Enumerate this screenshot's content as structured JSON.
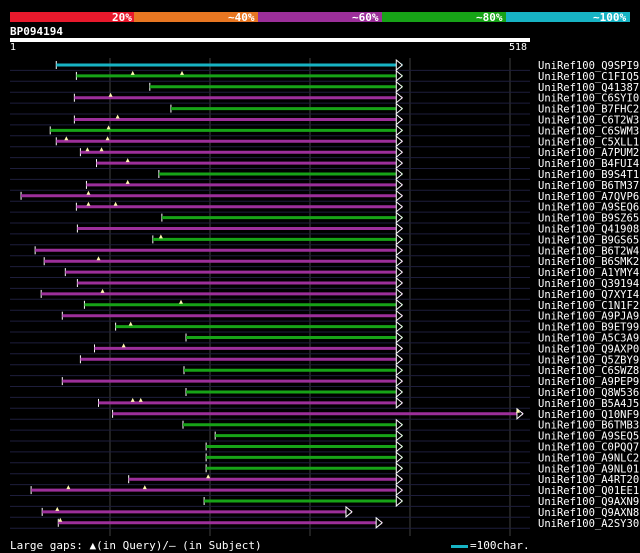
{
  "identity_legend": {
    "colors": [
      "#e8192c",
      "#e87722",
      "#9c2f9a",
      "#17a317",
      "#17b3c4"
    ],
    "labels": [
      "20%",
      "~40%",
      "~60%",
      "~80%",
      "~100%"
    ]
  },
  "query": {
    "id": "BP094194",
    "length_start": "1",
    "length_end": "518"
  },
  "chart_data": {
    "type": "alignment",
    "query_range": [
      1,
      518
    ],
    "hits": [
      {
        "name": "UniRef100_Q9SPI9",
        "color": "teal",
        "start": 47,
        "end": 391,
        "query_gaps": [],
        "subject_gaps": []
      },
      {
        "name": "UniRef100_C1FIQ5",
        "color": "green",
        "start": 67,
        "end": 391,
        "query_gaps": [
          123,
          172
        ],
        "subject_gaps": []
      },
      {
        "name": "UniRef100_Q41387",
        "color": "green",
        "start": 140,
        "end": 391,
        "query_gaps": [],
        "subject_gaps": []
      },
      {
        "name": "UniRef100_C6SYI0",
        "color": "purple",
        "start": 65,
        "end": 391,
        "query_gaps": [
          101
        ],
        "subject_gaps": []
      },
      {
        "name": "UniRef100_B7FHC2",
        "color": "green",
        "start": 161,
        "end": 391,
        "query_gaps": [],
        "subject_gaps": []
      },
      {
        "name": "UniRef100_C6T2W3",
        "color": "purple",
        "start": 65,
        "end": 391,
        "query_gaps": [
          108
        ],
        "subject_gaps": []
      },
      {
        "name": "UniRef100_C6SWM3",
        "color": "green",
        "start": 41,
        "end": 391,
        "query_gaps": [
          99
        ],
        "subject_gaps": []
      },
      {
        "name": "UniRef100_C5XLL1",
        "color": "purple",
        "start": 47,
        "end": 391,
        "query_gaps": [
          57,
          98
        ],
        "subject_gaps": []
      },
      {
        "name": "UniRef100_A7PUM2",
        "color": "purple",
        "start": 71,
        "end": 391,
        "query_gaps": [
          78,
          92
        ],
        "subject_gaps": []
      },
      {
        "name": "UniRef100_B4FUI4",
        "color": "purple",
        "start": 87,
        "end": 391,
        "query_gaps": [
          118
        ],
        "subject_gaps": []
      },
      {
        "name": "UniRef100_B9S4T1",
        "color": "green",
        "start": 149,
        "end": 391,
        "query_gaps": [],
        "subject_gaps": []
      },
      {
        "name": "UniRef100_B6TM37",
        "color": "purple",
        "start": 77,
        "end": 391,
        "query_gaps": [
          118
        ],
        "subject_gaps": []
      },
      {
        "name": "UniRef100_A7QVP6",
        "color": "purple",
        "start": 12,
        "end": 391,
        "query_gaps": [
          79
        ],
        "subject_gaps": []
      },
      {
        "name": "UniRef100_A9SEQ6",
        "color": "purple",
        "start": 67,
        "end": 391,
        "query_gaps": [
          79,
          106
        ],
        "subject_gaps": []
      },
      {
        "name": "UniRef100_B9SZ65",
        "color": "green",
        "start": 152,
        "end": 391,
        "query_gaps": [],
        "subject_gaps": []
      },
      {
        "name": "UniRef100_Q41908",
        "color": "purple",
        "start": 68,
        "end": 391,
        "query_gaps": [],
        "subject_gaps": []
      },
      {
        "name": "UniRef100_B9GS65",
        "color": "green",
        "start": 143,
        "end": 391,
        "query_gaps": [
          151
        ],
        "subject_gaps": []
      },
      {
        "name": "UniRef100_B6T2W4",
        "color": "purple",
        "start": 26,
        "end": 391,
        "query_gaps": [],
        "subject_gaps": []
      },
      {
        "name": "UniRef100_B6SMK2",
        "color": "purple",
        "start": 35,
        "end": 391,
        "query_gaps": [
          89
        ],
        "subject_gaps": []
      },
      {
        "name": "UniRef100_A1YMY4",
        "color": "purple",
        "start": 56,
        "end": 391,
        "query_gaps": [],
        "subject_gaps": []
      },
      {
        "name": "UniRef100_Q39194",
        "color": "purple",
        "start": 68,
        "end": 391,
        "query_gaps": [],
        "subject_gaps": []
      },
      {
        "name": "UniRef100_Q7XYI4",
        "color": "purple",
        "start": 32,
        "end": 391,
        "query_gaps": [
          93
        ],
        "subject_gaps": []
      },
      {
        "name": "UniRef100_C1N1F2",
        "color": "green",
        "start": 75,
        "end": 391,
        "query_gaps": [
          171
        ],
        "subject_gaps": []
      },
      {
        "name": "UniRef100_A9PJA9",
        "color": "purple",
        "start": 53,
        "end": 391,
        "query_gaps": [],
        "subject_gaps": []
      },
      {
        "name": "UniRef100_B9ET99",
        "color": "green",
        "start": 106,
        "end": 391,
        "query_gaps": [
          121
        ],
        "subject_gaps": []
      },
      {
        "name": "UniRef100_A5C3A9",
        "color": "green",
        "start": 176,
        "end": 391,
        "query_gaps": [],
        "subject_gaps": []
      },
      {
        "name": "UniRef100_Q9AXP0",
        "color": "purple",
        "start": 85,
        "end": 391,
        "query_gaps": [
          114
        ],
        "subject_gaps": []
      },
      {
        "name": "UniRef100_Q5ZBY9",
        "color": "purple",
        "start": 71,
        "end": 391,
        "query_gaps": [],
        "subject_gaps": []
      },
      {
        "name": "UniRef100_C6SWZ8",
        "color": "green",
        "start": 174,
        "end": 391,
        "query_gaps": [],
        "subject_gaps": []
      },
      {
        "name": "UniRef100_A9PEP9",
        "color": "purple",
        "start": 53,
        "end": 391,
        "query_gaps": [],
        "subject_gaps": []
      },
      {
        "name": "UniRef100_Q8W536",
        "color": "green",
        "start": 176,
        "end": 391,
        "query_gaps": [],
        "subject_gaps": []
      },
      {
        "name": "UniRef100_B5A4J5",
        "color": "purple",
        "start": 89,
        "end": 391,
        "query_gaps": [
          123,
          131
        ],
        "subject_gaps": []
      },
      {
        "name": "UniRef100_Q10NF9",
        "color": "purple",
        "start": 103,
        "end": 511,
        "query_gaps": [
          506
        ],
        "subject_gaps": []
      },
      {
        "name": "UniRef100_B6TMB3",
        "color": "green",
        "start": 173,
        "end": 391,
        "query_gaps": [],
        "subject_gaps": []
      },
      {
        "name": "UniRef100_A9SEQ5",
        "color": "green",
        "start": 205,
        "end": 391,
        "query_gaps": [],
        "subject_gaps": []
      },
      {
        "name": "UniRef100_C0PQQ7",
        "color": "green",
        "start": 196,
        "end": 391,
        "query_gaps": [],
        "subject_gaps": []
      },
      {
        "name": "UniRef100_A9NLC2",
        "color": "green",
        "start": 196,
        "end": 391,
        "query_gaps": [],
        "subject_gaps": []
      },
      {
        "name": "UniRef100_A9NL01",
        "color": "green",
        "start": 196,
        "end": 391,
        "query_gaps": [],
        "subject_gaps": []
      },
      {
        "name": "UniRef100_A4RT20",
        "color": "purple",
        "start": 119,
        "end": 391,
        "query_gaps": [
          198
        ],
        "subject_gaps": []
      },
      {
        "name": "UniRef100_Q01EE1",
        "color": "purple",
        "start": 22,
        "end": 391,
        "query_gaps": [
          59,
          135
        ],
        "subject_gaps": []
      },
      {
        "name": "UniRef100_Q9AXN9",
        "color": "green",
        "start": 194,
        "end": 391,
        "query_gaps": [],
        "subject_gaps": []
      },
      {
        "name": "UniRef100_Q9AXN8",
        "color": "purple",
        "start": 33,
        "end": 341,
        "query_gaps": [
          48
        ],
        "subject_gaps": []
      },
      {
        "name": "UniRef100_A2SY30",
        "color": "purple",
        "start": 49,
        "end": 371,
        "query_gaps": [
          51
        ],
        "subject_gaps": []
      }
    ]
  },
  "footer": {
    "gaps_label": "Large gaps: ▲(in Query)/– (in Subject)",
    "scale_label": "=100char."
  }
}
